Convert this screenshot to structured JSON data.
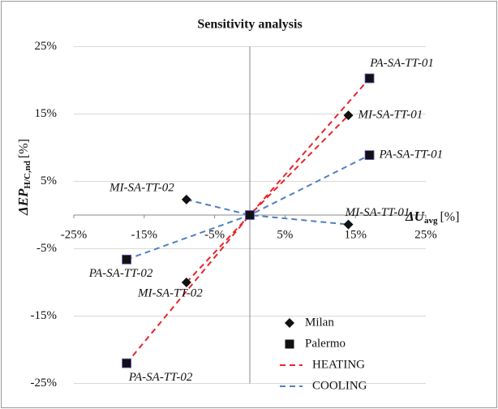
{
  "chart_data": {
    "type": "scatter",
    "title": "Sensitivity analysis",
    "x_label": {
      "main": "ΔU",
      "sub": "avg",
      "unit": "[%]"
    },
    "y_label": {
      "main": "ΔEP",
      "sub": "H/C,nd",
      "unit": "[%]"
    },
    "xlim": [
      -25,
      25
    ],
    "ylim": [
      -25,
      25
    ],
    "xticks": [
      {
        "value": -25,
        "label": "-25%"
      },
      {
        "value": -15,
        "label": "-15%"
      },
      {
        "value": -5,
        "label": "-5%"
      },
      {
        "value": 5,
        "label": "5%"
      },
      {
        "value": 15,
        "label": "15%"
      },
      {
        "value": 25,
        "label": "25%"
      }
    ],
    "yticks": [
      {
        "value": 25,
        "label": "25%"
      },
      {
        "value": 15,
        "label": "15%"
      },
      {
        "value": 5,
        "label": "5%"
      },
      {
        "value": -5,
        "label": "-5%"
      },
      {
        "value": -15,
        "label": "-15%"
      },
      {
        "value": -25,
        "label": "-25%"
      }
    ],
    "grid": true,
    "legend": "lower right",
    "series": [
      {
        "name": "Milan",
        "marker": "diamond",
        "color": "#111111",
        "x": [
          -9,
          14,
          -9,
          14,
          0
        ],
        "y": [
          2.3,
          14.8,
          -10,
          -1.4,
          0
        ],
        "point_labels": [
          "MI-SA-TT-02",
          "MI-SA-TT-01",
          "MI-SA-TT-02",
          "MI-SA-TT-01",
          null
        ]
      },
      {
        "name": "Palermo",
        "marker": "square",
        "color": "#111111",
        "x": [
          17,
          17,
          -17.5,
          -17.5,
          0
        ],
        "y": [
          20.3,
          8.9,
          -6.6,
          -22,
          0
        ],
        "point_labels": [
          "PA-SA-TT-01",
          "PA-SA-TT-01",
          "PA-SA-TT-02",
          "PA-SA-TT-02",
          null
        ]
      }
    ],
    "lines": [
      {
        "name": "HEATING",
        "color": "#e8262b",
        "dashed": true,
        "x": [
          -17.5,
          0,
          17,
          null,
          -9,
          0,
          14
        ],
        "y": [
          -22,
          0,
          20.3,
          null,
          -10,
          0,
          14.8
        ]
      },
      {
        "name": "COOLING",
        "color": "#4f81bd",
        "dashed": true,
        "x": [
          -17.5,
          0,
          17,
          null,
          -9,
          0,
          14
        ],
        "y": [
          -6.6,
          0,
          8.9,
          null,
          2.3,
          0,
          -1.4
        ]
      }
    ]
  }
}
